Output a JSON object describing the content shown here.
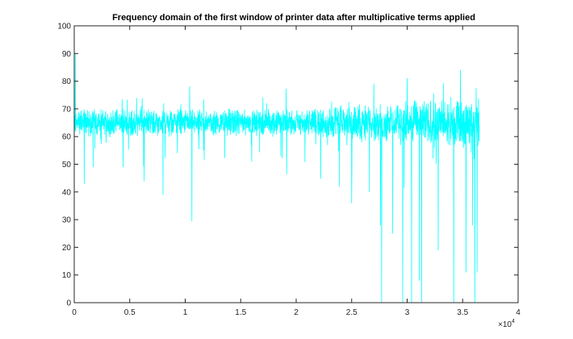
{
  "chart_data": {
    "type": "line",
    "title": "Frequency domain of the first window of printer data after multiplicative terms applied",
    "xlabel": "",
    "ylabel": "",
    "xlim": [
      0,
      40000
    ],
    "ylim": [
      0,
      100
    ],
    "x_exponent_label": "×10",
    "x_exponent_power": "4",
    "x_ticks": [
      {
        "value": 0,
        "label": "0"
      },
      {
        "value": 5000,
        "label": "0.5"
      },
      {
        "value": 10000,
        "label": "1"
      },
      {
        "value": 15000,
        "label": "1.5"
      },
      {
        "value": 20000,
        "label": "2"
      },
      {
        "value": 25000,
        "label": "2.5"
      },
      {
        "value": 30000,
        "label": "3"
      },
      {
        "value": 35000,
        "label": "3.5"
      },
      {
        "value": 40000,
        "label": "4"
      }
    ],
    "y_ticks": [
      {
        "value": 0,
        "label": "0"
      },
      {
        "value": 10,
        "label": "10"
      },
      {
        "value": 20,
        "label": "20"
      },
      {
        "value": 30,
        "label": "30"
      },
      {
        "value": 40,
        "label": "40"
      },
      {
        "value": 50,
        "label": "50"
      },
      {
        "value": 60,
        "label": "60"
      },
      {
        "value": 70,
        "label": "70"
      },
      {
        "value": 80,
        "label": "80"
      },
      {
        "value": 90,
        "label": "90"
      },
      {
        "value": 100,
        "label": "100"
      }
    ],
    "grid": false,
    "colors": {
      "series": "#00ffff",
      "axes": "#262626"
    },
    "series": [
      {
        "x_range": [
          0,
          36500
        ],
        "baseline": 65,
        "spikes": [
          {
            "x": 100,
            "y": 90
          },
          {
            "x": 900,
            "y": 43
          },
          {
            "x": 1700,
            "y": 49
          },
          {
            "x": 4400,
            "y": 49
          },
          {
            "x": 6300,
            "y": 44
          },
          {
            "x": 8000,
            "y": 39
          },
          {
            "x": 10400,
            "y": 78
          },
          {
            "x": 10600,
            "y": 29.5
          },
          {
            "x": 17000,
            "y": 74
          },
          {
            "x": 23900,
            "y": 42
          },
          {
            "x": 25000,
            "y": 36
          },
          {
            "x": 26600,
            "y": 40
          },
          {
            "x": 27000,
            "y": 79
          },
          {
            "x": 27600,
            "y": 28
          },
          {
            "x": 27700,
            "y": 0
          },
          {
            "x": 28700,
            "y": 25
          },
          {
            "x": 29600,
            "y": 0
          },
          {
            "x": 30000,
            "y": 81
          },
          {
            "x": 30400,
            "y": 0
          },
          {
            "x": 31100,
            "y": 8
          },
          {
            "x": 31300,
            "y": 0
          },
          {
            "x": 32800,
            "y": 19
          },
          {
            "x": 34200,
            "y": 0
          },
          {
            "x": 34800,
            "y": 84
          },
          {
            "x": 35300,
            "y": 11
          },
          {
            "x": 35900,
            "y": 28
          },
          {
            "x": 36100,
            "y": 0
          },
          {
            "x": 36300,
            "y": 11
          }
        ]
      }
    ]
  }
}
